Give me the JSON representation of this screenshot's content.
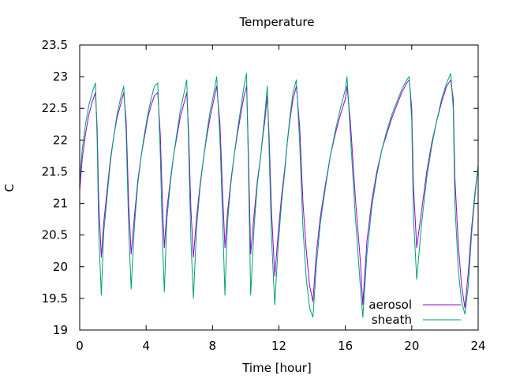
{
  "chart_data": {
    "type": "line",
    "title": "Temperature",
    "xlabel": "Time [hour]",
    "ylabel": "C",
    "xlim": [
      0,
      24
    ],
    "ylim": [
      19,
      23.5
    ],
    "xticks": [
      "0",
      "4",
      "8",
      "12",
      "16",
      "20",
      "24"
    ],
    "yticks": [
      "19",
      "19.5",
      "20",
      "20.5",
      "21",
      "21.5",
      "22",
      "22.5",
      "23",
      "23.5"
    ],
    "grid": false,
    "legend_position": "bottom-right",
    "series": [
      {
        "name": "aerosol",
        "color": "#9400d3",
        "x": [
          0,
          0.15,
          0.35,
          0.55,
          0.75,
          0.95,
          1.05,
          1.15,
          1.3,
          1.45,
          1.65,
          1.85,
          2.05,
          2.25,
          2.45,
          2.65,
          2.8,
          2.95,
          3.1,
          3.3,
          3.5,
          3.7,
          3.9,
          4.1,
          4.3,
          4.5,
          4.7,
          4.85,
          5.0,
          5.1,
          5.25,
          5.45,
          5.65,
          5.85,
          6.05,
          6.25,
          6.45,
          6.55,
          6.7,
          6.85,
          7.05,
          7.25,
          7.45,
          7.65,
          7.85,
          8.05,
          8.25,
          8.45,
          8.6,
          8.75,
          8.9,
          9.1,
          9.3,
          9.5,
          9.7,
          9.9,
          10.05,
          10.15,
          10.3,
          10.5,
          10.7,
          10.9,
          11.05,
          11.15,
          11.3,
          11.4,
          11.55,
          11.75,
          11.95,
          12.15,
          12.35,
          12.5,
          12.65,
          12.85,
          13.05,
          13.25,
          13.45,
          13.65,
          13.85,
          14.05,
          14.25,
          14.5,
          14.8,
          15.1,
          15.4,
          15.7,
          16.0,
          16.1,
          16.3,
          16.6,
          16.9,
          17.05,
          17.3,
          17.6,
          17.9,
          18.2,
          18.5,
          18.8,
          19.1,
          19.4,
          19.7,
          19.85,
          20.0,
          20.1,
          20.3,
          20.6,
          20.9,
          21.2,
          21.5,
          21.8,
          22.1,
          22.35,
          22.5,
          22.6,
          22.8,
          23.0,
          23.2,
          23.4,
          23.6,
          23.8,
          24.0
        ],
        "y": [
          21.2,
          21.7,
          22.1,
          22.4,
          22.6,
          22.75,
          22.2,
          21.0,
          20.15,
          20.7,
          21.2,
          21.7,
          22.05,
          22.35,
          22.55,
          22.75,
          22.3,
          21.0,
          20.2,
          20.8,
          21.35,
          21.75,
          22.05,
          22.35,
          22.55,
          22.7,
          22.75,
          22.1,
          20.9,
          20.3,
          20.9,
          21.35,
          21.75,
          22.05,
          22.35,
          22.55,
          22.75,
          22.2,
          20.9,
          20.15,
          20.8,
          21.3,
          21.7,
          22.05,
          22.35,
          22.6,
          22.85,
          22.25,
          21.2,
          20.3,
          20.85,
          21.35,
          21.75,
          22.1,
          22.4,
          22.7,
          22.85,
          21.9,
          20.2,
          20.8,
          21.35,
          21.75,
          22.1,
          22.3,
          22.7,
          22.1,
          20.9,
          19.85,
          20.5,
          21.1,
          21.55,
          21.95,
          22.3,
          22.65,
          22.85,
          22.2,
          21.0,
          20.25,
          19.7,
          19.45,
          20.2,
          20.8,
          21.3,
          21.75,
          22.1,
          22.4,
          22.65,
          22.85,
          22.3,
          21.1,
          20.1,
          19.4,
          20.4,
          21.05,
          21.5,
          21.85,
          22.1,
          22.35,
          22.55,
          22.75,
          22.9,
          22.95,
          22.5,
          21.3,
          20.3,
          20.9,
          21.5,
          21.95,
          22.3,
          22.6,
          22.85,
          22.95,
          22.65,
          21.4,
          20.35,
          19.7,
          19.35,
          19.9,
          20.6,
          21.15,
          21.6
        ]
      },
      {
        "name": "sheath",
        "color": "#009e73",
        "x": [
          0,
          0.15,
          0.35,
          0.55,
          0.75,
          0.95,
          1.05,
          1.15,
          1.3,
          1.45,
          1.65,
          1.85,
          2.05,
          2.25,
          2.45,
          2.65,
          2.8,
          2.95,
          3.1,
          3.3,
          3.5,
          3.7,
          3.9,
          4.1,
          4.3,
          4.5,
          4.7,
          4.85,
          5.0,
          5.1,
          5.25,
          5.45,
          5.65,
          5.85,
          6.05,
          6.25,
          6.45,
          6.55,
          6.7,
          6.85,
          7.05,
          7.25,
          7.45,
          7.65,
          7.85,
          8.05,
          8.25,
          8.45,
          8.6,
          8.75,
          8.9,
          9.1,
          9.3,
          9.5,
          9.7,
          9.9,
          10.05,
          10.15,
          10.3,
          10.5,
          10.7,
          10.9,
          11.05,
          11.15,
          11.3,
          11.4,
          11.55,
          11.75,
          11.95,
          12.15,
          12.35,
          12.5,
          12.65,
          12.85,
          13.05,
          13.25,
          13.45,
          13.65,
          13.85,
          14.05,
          14.25,
          14.5,
          14.8,
          15.1,
          15.4,
          15.7,
          16.0,
          16.1,
          16.3,
          16.6,
          16.9,
          17.05,
          17.3,
          17.6,
          17.9,
          18.2,
          18.5,
          18.8,
          19.1,
          19.4,
          19.7,
          19.85,
          20.0,
          20.1,
          20.3,
          20.6,
          20.9,
          21.2,
          21.5,
          21.8,
          22.1,
          22.35,
          22.5,
          22.6,
          22.8,
          23.0,
          23.2,
          23.4,
          23.6,
          23.8,
          24.0
        ],
        "y": [
          21.35,
          21.85,
          22.25,
          22.55,
          22.75,
          22.9,
          22.0,
          20.5,
          19.55,
          20.55,
          21.1,
          21.65,
          22.05,
          22.4,
          22.65,
          22.85,
          22.1,
          20.6,
          19.65,
          20.65,
          21.3,
          21.75,
          22.1,
          22.4,
          22.65,
          22.85,
          22.9,
          21.8,
          20.3,
          19.6,
          20.75,
          21.3,
          21.75,
          22.1,
          22.45,
          22.7,
          22.95,
          22.0,
          20.4,
          19.5,
          20.65,
          21.25,
          21.7,
          22.1,
          22.45,
          22.7,
          23.0,
          22.0,
          20.8,
          19.55,
          20.7,
          21.3,
          21.75,
          22.15,
          22.5,
          22.85,
          23.05,
          21.7,
          19.55,
          20.6,
          21.3,
          21.75,
          22.15,
          22.4,
          22.85,
          21.9,
          20.5,
          19.4,
          20.3,
          21.0,
          21.5,
          21.95,
          22.35,
          22.75,
          22.95,
          21.95,
          20.6,
          19.8,
          19.35,
          19.2,
          20.0,
          20.7,
          21.25,
          21.75,
          22.15,
          22.5,
          22.8,
          23.0,
          22.1,
          20.8,
          19.7,
          19.2,
          20.2,
          20.95,
          21.45,
          21.85,
          22.15,
          22.4,
          22.6,
          22.8,
          22.95,
          23.0,
          22.3,
          20.8,
          19.8,
          20.7,
          21.4,
          21.9,
          22.3,
          22.65,
          22.9,
          23.05,
          22.5,
          21.0,
          19.95,
          19.45,
          19.25,
          19.7,
          20.5,
          21.1,
          21.6
        ]
      }
    ]
  }
}
